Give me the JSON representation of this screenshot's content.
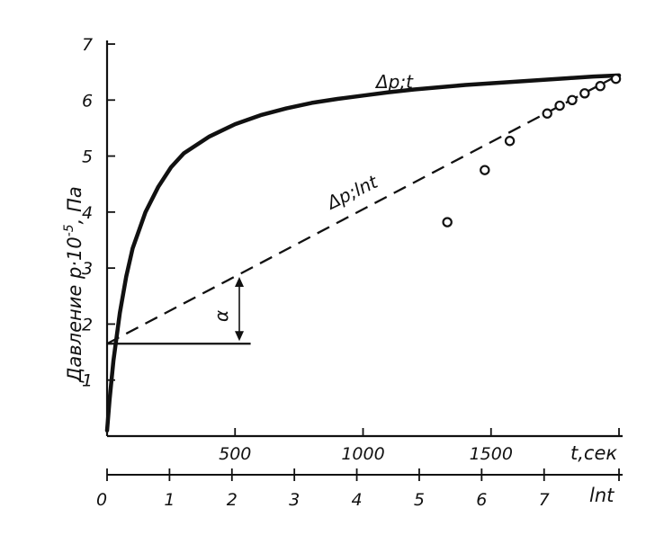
{
  "chart_data": {
    "type": "line",
    "ylabel": "Давление p·10",
    "ylabel_exp": "-5",
    "ylabel_unit": ", Па",
    "ylim": [
      0,
      7
    ],
    "yticks": [
      "1",
      "2",
      "3",
      "4",
      "5",
      "6",
      "7"
    ],
    "x_axis_top": {
      "label": "t,сек",
      "range": [
        0,
        2000
      ],
      "ticks": [
        "500",
        "1000",
        "1500"
      ]
    },
    "x_axis_bottom": {
      "label": "lnt",
      "range": [
        0,
        8.2
      ],
      "ticks": [
        "0",
        "1",
        "2",
        "3",
        "4",
        "5",
        "6",
        "7"
      ]
    },
    "series": [
      {
        "name": "Δp;t",
        "style": "solid",
        "axis": "t",
        "x": [
          0,
          10,
          25,
          50,
          75,
          100,
          150,
          200,
          250,
          300,
          400,
          500,
          600,
          700,
          800,
          900,
          1000,
          1100,
          1200,
          1300,
          1400,
          1500,
          1600,
          1700,
          1800,
          1900,
          2000
        ],
        "y": [
          0.1,
          0.65,
          1.35,
          2.2,
          2.85,
          3.35,
          4.0,
          4.45,
          4.8,
          5.05,
          5.35,
          5.57,
          5.73,
          5.85,
          5.95,
          6.02,
          6.08,
          6.14,
          6.19,
          6.23,
          6.27,
          6.3,
          6.33,
          6.36,
          6.39,
          6.42,
          6.44
        ]
      },
      {
        "name": "Δp;lnt",
        "style": "dashed",
        "axis": "lnt",
        "x": [
          0,
          8.2
        ],
        "y": [
          1.65,
          6.45
        ]
      },
      {
        "name": "points",
        "style": "markers",
        "axis": "lnt",
        "x": [
          5.45,
          6.05,
          6.45,
          7.05,
          7.25,
          7.45,
          7.65,
          7.9,
          8.15
        ],
        "y": [
          3.82,
          4.75,
          5.27,
          5.76,
          5.9,
          6.0,
          6.12,
          6.25,
          6.38
        ]
      }
    ],
    "baseline": {
      "y": 1.65,
      "x_end": 2.3,
      "axis": "lnt"
    },
    "angle_label": "α"
  }
}
